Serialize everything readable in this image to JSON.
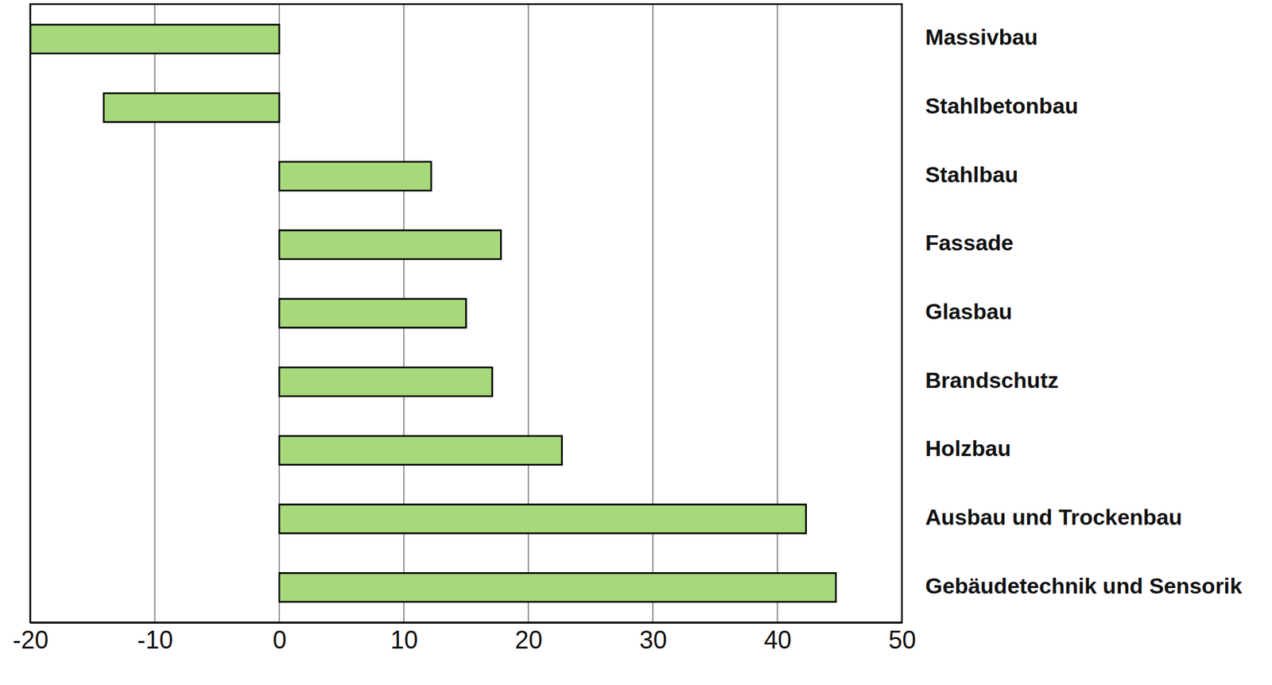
{
  "chart_data": {
    "type": "bar",
    "orientation": "horizontal",
    "categories": [
      "Massivbau",
      "Stahlbetonbau",
      "Stahlbau",
      "Fassade",
      "Glasbau",
      "Brandschutz",
      "Holzbau",
      "Ausbau und Trockenbau",
      "Gebäudetechnik und Sensorik"
    ],
    "values": [
      -20,
      -14.1,
      12.2,
      17.8,
      15.0,
      17.1,
      22.7,
      42.3,
      44.7
    ],
    "color": "#a8d87c",
    "xlim": [
      -20,
      50
    ],
    "xticks": [
      -20,
      -10,
      0,
      10,
      20,
      30,
      40,
      50
    ],
    "grid": true
  }
}
